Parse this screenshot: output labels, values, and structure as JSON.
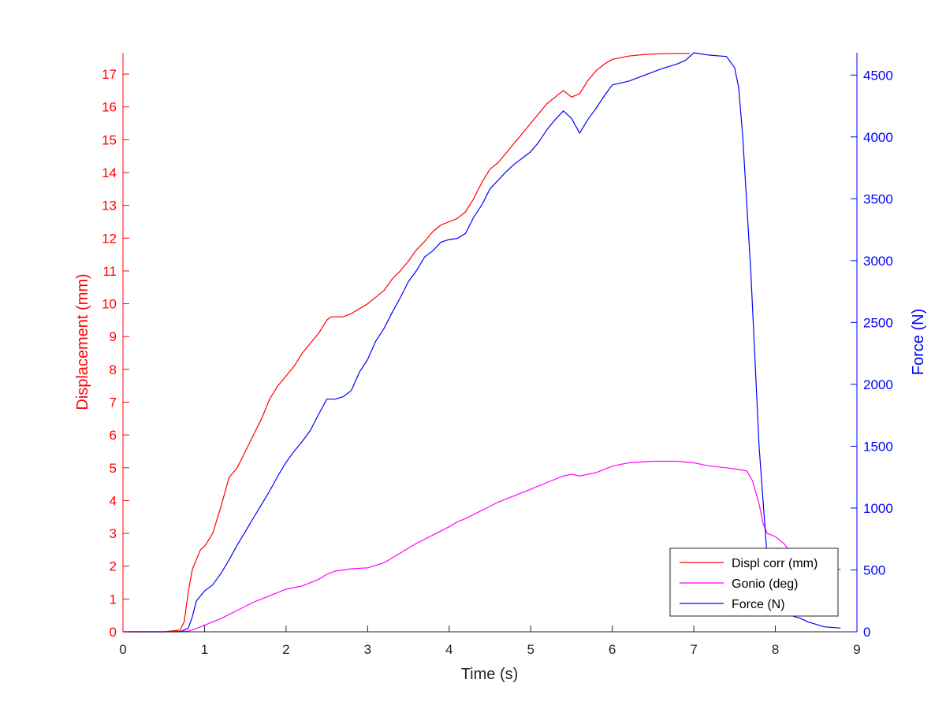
{
  "chart_data": {
    "type": "line",
    "xlabel": "Time (s)",
    "ylabel_left": "Displacement (mm)",
    "ylabel_right": "Force (N)",
    "xlim": [
      0,
      9
    ],
    "ylim_left": [
      0,
      17.65
    ],
    "ylim_right": [
      0,
      4680
    ],
    "x_ticks": [
      0,
      1,
      2,
      3,
      4,
      5,
      6,
      7,
      8,
      9
    ],
    "y_ticks_left": [
      0,
      1,
      2,
      3,
      4,
      5,
      6,
      7,
      8,
      9,
      10,
      11,
      12,
      13,
      14,
      15,
      16,
      17
    ],
    "y_ticks_right": [
      0,
      500,
      1000,
      1500,
      2000,
      2500,
      3000,
      3500,
      4000,
      4500
    ],
    "grid": false,
    "legend_position": "bottom-right",
    "colors": {
      "left_axis": "#ff0000",
      "right_axis": "#0000ff",
      "x_axis": "#262626"
    },
    "series": [
      {
        "name": "Displ corr (mm)",
        "axis": "left",
        "color": "#ff0000",
        "x": [
          0,
          0.5,
          0.7,
          0.75,
          0.8,
          0.85,
          0.9,
          0.95,
          1.0,
          1.1,
          1.2,
          1.3,
          1.4,
          1.5,
          1.6,
          1.7,
          1.8,
          1.9,
          2.0,
          2.1,
          2.2,
          2.3,
          2.4,
          2.5,
          2.55,
          2.7,
          2.8,
          2.9,
          3.0,
          3.1,
          3.2,
          3.3,
          3.4,
          3.5,
          3.6,
          3.7,
          3.8,
          3.9,
          4.0,
          4.1,
          4.2,
          4.3,
          4.4,
          4.5,
          4.6,
          4.7,
          4.8,
          4.9,
          5.0,
          5.1,
          5.2,
          5.3,
          5.4,
          5.5,
          5.6,
          5.7,
          5.8,
          5.9,
          6.0,
          6.2,
          6.4,
          6.6,
          6.8,
          6.95
        ],
        "y": [
          0,
          0,
          0.05,
          0.3,
          1.2,
          1.9,
          2.2,
          2.5,
          2.6,
          3.0,
          3.8,
          4.7,
          5.0,
          5.5,
          6.0,
          6.5,
          7.1,
          7.5,
          7.8,
          8.1,
          8.5,
          8.8,
          9.1,
          9.5,
          9.6,
          9.6,
          9.7,
          9.85,
          10.0,
          10.2,
          10.4,
          10.75,
          11.0,
          11.3,
          11.65,
          11.9,
          12.2,
          12.4,
          12.5,
          12.6,
          12.8,
          13.2,
          13.7,
          14.1,
          14.3,
          14.6,
          14.9,
          15.2,
          15.5,
          15.8,
          16.1,
          16.3,
          16.5,
          16.3,
          16.4,
          16.8,
          17.1,
          17.3,
          17.45,
          17.55,
          17.6,
          17.62,
          17.63,
          17.63
        ]
      },
      {
        "name": "Gonio (deg)",
        "axis": "left",
        "color": "#ff00ff",
        "x": [
          0,
          0.5,
          0.8,
          0.9,
          1.0,
          1.2,
          1.4,
          1.6,
          1.8,
          2.0,
          2.2,
          2.4,
          2.5,
          2.6,
          2.8,
          3.0,
          3.2,
          3.4,
          3.6,
          3.8,
          4.0,
          4.1,
          4.2,
          4.4,
          4.6,
          4.8,
          5.0,
          5.2,
          5.4,
          5.5,
          5.6,
          5.8,
          6.0,
          6.2,
          6.5,
          6.8,
          7.0,
          7.2,
          7.4,
          7.55,
          7.65,
          7.72,
          7.8,
          7.85,
          7.9,
          8.0,
          8.1,
          8.2,
          8.3,
          8.5,
          8.8
        ],
        "y": [
          0,
          0,
          0.02,
          0.1,
          0.2,
          0.4,
          0.65,
          0.9,
          1.1,
          1.3,
          1.4,
          1.6,
          1.75,
          1.85,
          1.92,
          1.95,
          2.1,
          2.4,
          2.7,
          2.95,
          3.2,
          3.35,
          3.45,
          3.7,
          3.95,
          4.15,
          4.35,
          4.55,
          4.75,
          4.8,
          4.75,
          4.85,
          5.05,
          5.15,
          5.2,
          5.2,
          5.15,
          5.05,
          5.0,
          4.95,
          4.9,
          4.6,
          3.9,
          3.3,
          3.0,
          2.9,
          2.7,
          2.4,
          2.2,
          2.0,
          1.9
        ]
      },
      {
        "name": "Force (N)",
        "axis": "right",
        "color": "#0000ff",
        "x": [
          0,
          0.5,
          0.7,
          0.8,
          0.85,
          0.9,
          1.0,
          1.1,
          1.2,
          1.3,
          1.4,
          1.5,
          1.6,
          1.7,
          1.8,
          1.9,
          2.0,
          2.1,
          2.2,
          2.3,
          2.4,
          2.5,
          2.6,
          2.7,
          2.8,
          2.9,
          3.0,
          3.1,
          3.2,
          3.3,
          3.4,
          3.5,
          3.6,
          3.7,
          3.8,
          3.9,
          4.0,
          4.1,
          4.2,
          4.3,
          4.4,
          4.5,
          4.6,
          4.7,
          4.8,
          4.9,
          5.0,
          5.1,
          5.2,
          5.3,
          5.4,
          5.5,
          5.6,
          5.7,
          5.8,
          5.9,
          6.0,
          6.2,
          6.4,
          6.6,
          6.8,
          6.9,
          7.0,
          7.2,
          7.4,
          7.5,
          7.55,
          7.6,
          7.7,
          7.8,
          7.9,
          8.0,
          8.1,
          8.2,
          8.3,
          8.4,
          8.5,
          8.6,
          8.8
        ],
        "y": [
          0,
          0,
          0,
          30,
          120,
          250,
          330,
          380,
          470,
          580,
          700,
          810,
          920,
          1030,
          1140,
          1260,
          1370,
          1460,
          1540,
          1630,
          1760,
          1880,
          1880,
          1900,
          1950,
          2100,
          2200,
          2350,
          2450,
          2580,
          2700,
          2830,
          2920,
          3030,
          3080,
          3150,
          3170,
          3180,
          3220,
          3350,
          3450,
          3580,
          3650,
          3720,
          3780,
          3830,
          3880,
          3960,
          4060,
          4140,
          4210,
          4150,
          4030,
          4140,
          4230,
          4330,
          4420,
          4450,
          4500,
          4550,
          4590,
          4620,
          4680,
          4660,
          4650,
          4560,
          4400,
          4000,
          2900,
          1500,
          600,
          200,
          150,
          130,
          110,
          80,
          60,
          40,
          30
        ]
      }
    ]
  }
}
